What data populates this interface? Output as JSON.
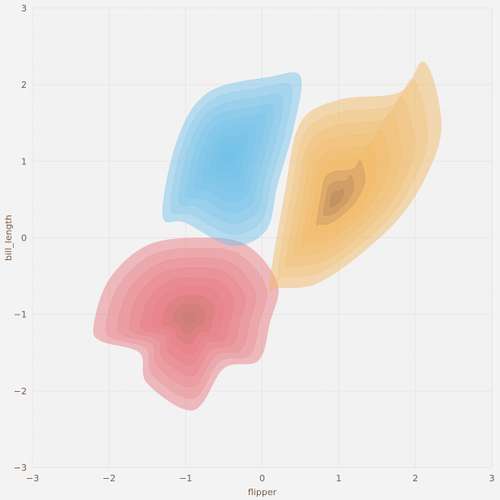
{
  "chart_data": {
    "type": "kde",
    "title": "",
    "xlabel": "flipper",
    "ylabel": "bill_length",
    "xlim": [
      -3,
      3
    ],
    "ylim": [
      -3,
      3
    ],
    "xticks": [
      -3,
      -2,
      -1,
      0,
      1,
      2,
      3
    ],
    "yticks": [
      -3,
      -2,
      -1,
      0,
      1,
      2,
      3
    ],
    "grid": true,
    "legend": "none",
    "colors": {
      "background": "#f3f3f3",
      "grid": "#e8e4e4",
      "tick_text": "#7a5a48",
      "red": "#e8737b",
      "blue": "#6ec0ea",
      "orange": "#f2b55a",
      "red_core": "#b77a66",
      "orange_core": "#9b6c58"
    },
    "series": [
      {
        "color": "red",
        "center": [
          -0.9,
          -1.05
        ],
        "outline": [
          [
            -2.2,
            -1.15
          ],
          [
            -2.0,
            -0.55
          ],
          [
            -1.5,
            -0.1
          ],
          [
            -0.8,
            0.0
          ],
          [
            -0.2,
            -0.1
          ],
          [
            0.2,
            -0.6
          ],
          [
            0.1,
            -1.1
          ],
          [
            -0.05,
            -1.6
          ],
          [
            -0.5,
            -1.7
          ],
          [
            -0.9,
            -2.25
          ],
          [
            -1.5,
            -1.9
          ],
          [
            -1.6,
            -1.5
          ],
          [
            -2.1,
            -1.35
          ]
        ],
        "mode": [
          -0.95,
          -1.05
        ]
      },
      {
        "color": "blue",
        "center": [
          -0.5,
          1.0
        ],
        "outline": [
          [
            -1.3,
            0.3
          ],
          [
            -1.1,
            1.3
          ],
          [
            -0.7,
            1.9
          ],
          [
            0.1,
            2.1
          ],
          [
            0.5,
            2.1
          ],
          [
            0.4,
            1.4
          ],
          [
            0.2,
            0.7
          ],
          [
            0.05,
            0.1
          ],
          [
            -0.4,
            -0.1
          ],
          [
            -1.0,
            0.2
          ]
        ],
        "mode": [
          -0.45,
          1.05
        ]
      },
      {
        "color": "orange",
        "center": [
          1.05,
          0.6
        ],
        "outline": [
          [
            0.1,
            -0.6
          ],
          [
            0.3,
            0.6
          ],
          [
            0.5,
            1.5
          ],
          [
            1.0,
            1.8
          ],
          [
            1.8,
            1.9
          ],
          [
            2.1,
            2.3
          ],
          [
            2.3,
            1.8
          ],
          [
            2.3,
            1.2
          ],
          [
            1.9,
            0.4
          ],
          [
            1.3,
            -0.2
          ],
          [
            0.7,
            -0.6
          ],
          [
            0.2,
            -0.65
          ]
        ],
        "mode": [
          0.95,
          0.5
        ]
      }
    ]
  }
}
